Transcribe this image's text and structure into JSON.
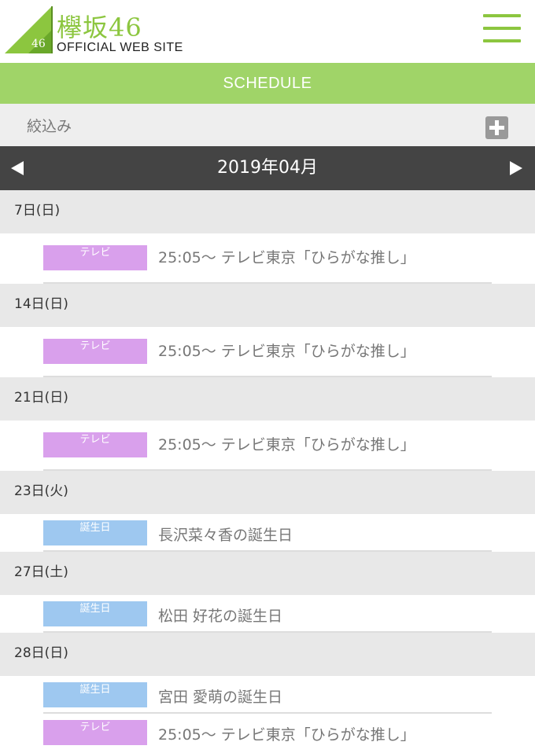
{
  "header": {
    "logo_jp": "欅坂46",
    "logo_num": "46",
    "logo_en": "OFFICIAL WEB SITE",
    "brand_color": "#8cc63f"
  },
  "section_title": "SCHEDULE",
  "filter": {
    "label": "絞込み"
  },
  "month": {
    "label": "2019年04月"
  },
  "days": [
    {
      "date": "7日(日)",
      "events": [
        {
          "category": "テレビ",
          "text": "25:05〜 テレビ東京「ひらがな推し」"
        }
      ]
    },
    {
      "date": "14日(日)",
      "events": [
        {
          "category": "テレビ",
          "text": "25:05〜 テレビ東京「ひらがな推し」"
        }
      ]
    },
    {
      "date": "21日(日)",
      "events": [
        {
          "category": "テレビ",
          "text": "25:05〜 テレビ東京「ひらがな推し」"
        }
      ]
    },
    {
      "date": "23日(火)",
      "events": [
        {
          "category": "誕生日",
          "text": "長沢菜々香の誕生日"
        }
      ]
    },
    {
      "date": "27日(土)",
      "events": [
        {
          "category": "誕生日",
          "text": "松田 好花の誕生日"
        }
      ]
    },
    {
      "date": "28日(日)",
      "events": [
        {
          "category": "誕生日",
          "text": "宮田 愛萌の誕生日"
        },
        {
          "category": "テレビ",
          "text": "25:05〜 テレビ東京「ひらがな推し」"
        }
      ]
    }
  ],
  "colors": {
    "tv": "#d9a0ec",
    "birthday": "#9ec8f0",
    "section_bar": "#a0d468",
    "month_bar": "#444444"
  }
}
